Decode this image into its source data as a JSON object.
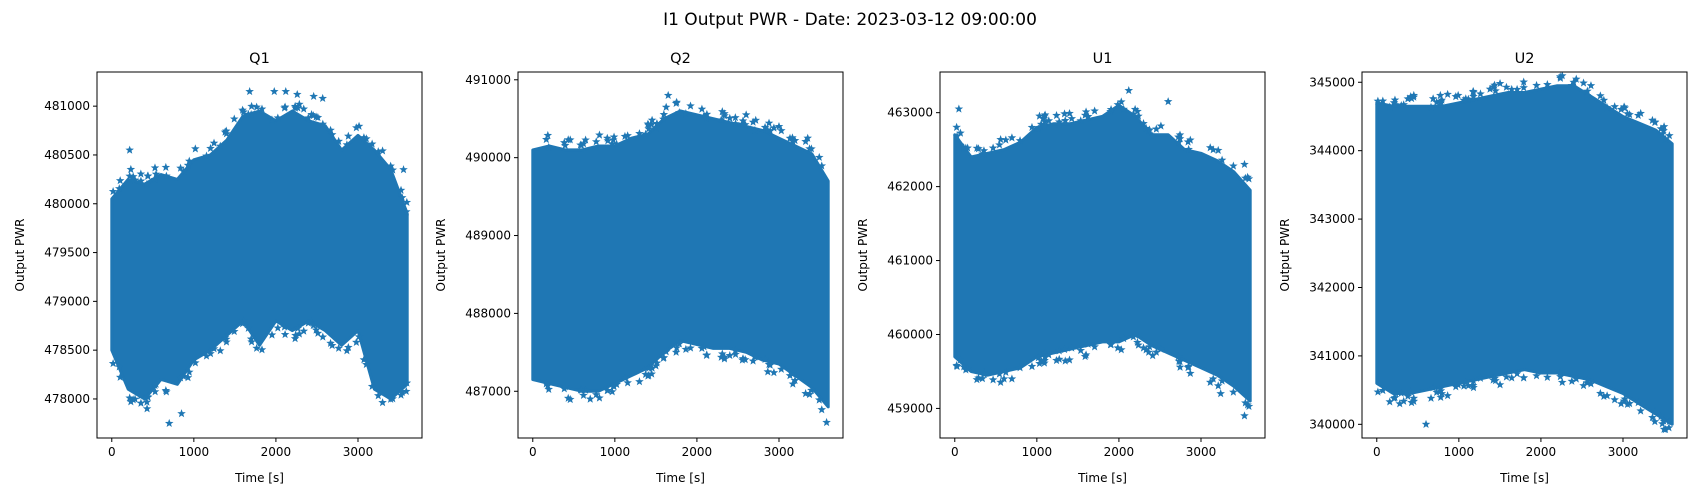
{
  "figure": {
    "suptitle": "I1 Output PWR - Date: 2023-03-12 09:00:00"
  },
  "chart_data": [
    {
      "type": "scatter",
      "title": "Q1",
      "xlabel": "Time [s]",
      "ylabel": "Output PWR",
      "marker": "star",
      "color": "#1f77b4",
      "xlim": [
        -180,
        3780
      ],
      "ylim": [
        477600,
        481350
      ],
      "xticks": [
        0,
        1000,
        2000,
        3000
      ],
      "yticks": [
        478000,
        478500,
        479000,
        479500,
        480000,
        480500,
        481000
      ],
      "xtick_labels": [
        "0",
        "1000",
        "2000",
        "3000"
      ],
      "ytick_labels": [
        "478000",
        "478500",
        "479000",
        "479500",
        "480000",
        "480500",
        "481000"
      ],
      "x": [
        0,
        200,
        400,
        600,
        800,
        1000,
        1200,
        1400,
        1600,
        1800,
        2000,
        2200,
        2400,
        2600,
        2800,
        3000,
        3200,
        3400,
        3600
      ],
      "y_upper": [
        480050,
        480250,
        480200,
        480300,
        480250,
        480450,
        480500,
        480650,
        480900,
        480950,
        480850,
        480950,
        480850,
        480800,
        480550,
        480700,
        480550,
        480350,
        479900
      ],
      "y_lower": [
        478500,
        478100,
        478000,
        478200,
        478150,
        478400,
        478500,
        478650,
        478800,
        478550,
        478800,
        478700,
        478800,
        478700,
        478550,
        478700,
        478100,
        478000,
        478150
      ],
      "outliers": [
        [
          218,
          480550
        ],
        [
          1680,
          481150
        ],
        [
          1980,
          481150
        ],
        [
          2120,
          481150
        ],
        [
          2260,
          481120
        ],
        [
          2460,
          481100
        ],
        [
          2570,
          481080
        ],
        [
          700,
          477750
        ],
        [
          430,
          477900
        ],
        [
          3555,
          480350
        ],
        [
          850,
          477850
        ]
      ]
    },
    {
      "type": "scatter",
      "title": "Q2",
      "xlabel": "Time [s]",
      "ylabel": "Output PWR",
      "marker": "star",
      "color": "#1f77b4",
      "xlim": [
        -180,
        3780
      ],
      "ylim": [
        486400,
        491100
      ],
      "xticks": [
        0,
        1000,
        2000,
        3000
      ],
      "yticks": [
        487000,
        488000,
        489000,
        490000,
        491000
      ],
      "xtick_labels": [
        "0",
        "1000",
        "2000",
        "3000"
      ],
      "ytick_labels": [
        "487000",
        "488000",
        "489000",
        "490000",
        "491000"
      ],
      "x": [
        0,
        200,
        400,
        600,
        800,
        1000,
        1200,
        1400,
        1600,
        1800,
        2000,
        2200,
        2400,
        2600,
        2800,
        3000,
        3200,
        3400,
        3600
      ],
      "y_upper": [
        490100,
        490150,
        490100,
        490100,
        490150,
        490150,
        490250,
        490300,
        490500,
        490600,
        490550,
        490500,
        490450,
        490400,
        490350,
        490250,
        490150,
        490050,
        489700
      ],
      "y_lower": [
        487150,
        487100,
        487050,
        487000,
        487000,
        487100,
        487200,
        487300,
        487500,
        487650,
        487600,
        487550,
        487550,
        487500,
        487400,
        487350,
        487200,
        487050,
        486800
      ],
      "outliers": [
        [
          1650,
          490800
        ],
        [
          2600,
          490550
        ],
        [
          3000,
          490400
        ],
        [
          3350,
          490250
        ],
        [
          3580,
          486600
        ],
        [
          700,
          486900
        ]
      ]
    },
    {
      "type": "scatter",
      "title": "U1",
      "xlabel": "Time [s]",
      "ylabel": "Output PWR",
      "marker": "star",
      "color": "#1f77b4",
      "xlim": [
        -180,
        3780
      ],
      "ylim": [
        458600,
        463550
      ],
      "xticks": [
        0,
        1000,
        2000,
        3000
      ],
      "yticks": [
        459000,
        460000,
        461000,
        462000,
        463000
      ],
      "xtick_labels": [
        "0",
        "1000",
        "2000",
        "3000"
      ],
      "ytick_labels": [
        "459000",
        "460000",
        "461000",
        "462000",
        "463000"
      ],
      "x": [
        0,
        200,
        400,
        600,
        800,
        1000,
        1200,
        1400,
        1600,
        1800,
        2000,
        2200,
        2400,
        2600,
        2800,
        3000,
        3200,
        3400,
        3600
      ],
      "y_upper": [
        462700,
        462400,
        462450,
        462500,
        462600,
        462800,
        462850,
        462850,
        462900,
        462950,
        463100,
        462950,
        462700,
        462700,
        462500,
        462450,
        462350,
        462200,
        461950
      ],
      "y_lower": [
        459700,
        459500,
        459450,
        459500,
        459550,
        459700,
        459750,
        459800,
        459850,
        459900,
        459900,
        460000,
        459850,
        459750,
        459650,
        459550,
        459450,
        459300,
        459100
      ],
      "outliers": [
        [
          50,
          463050
        ],
        [
          2120,
          463300
        ],
        [
          2600,
          463150
        ],
        [
          3530,
          462300
        ],
        [
          3530,
          458900
        ],
        [
          3240,
          459200
        ],
        [
          600,
          459400
        ]
      ]
    },
    {
      "type": "scatter",
      "title": "U2",
      "xlabel": "Time [s]",
      "ylabel": "Output PWR",
      "marker": "star",
      "color": "#1f77b4",
      "xlim": [
        -180,
        3780
      ],
      "ylim": [
        339800,
        345150
      ],
      "xticks": [
        0,
        1000,
        2000,
        3000
      ],
      "yticks": [
        340000,
        341000,
        342000,
        343000,
        344000,
        345000
      ],
      "xtick_labels": [
        "0",
        "1000",
        "2000",
        "3000"
      ],
      "ytick_labels": [
        "340000",
        "341000",
        "342000",
        "343000",
        "344000",
        "345000"
      ],
      "x": [
        0,
        200,
        400,
        600,
        800,
        1000,
        1200,
        1400,
        1600,
        1800,
        2000,
        2200,
        2400,
        2600,
        2800,
        3000,
        3200,
        3400,
        3600
      ],
      "y_upper": [
        344700,
        344650,
        344650,
        344650,
        344650,
        344700,
        344750,
        344800,
        344850,
        344850,
        344900,
        344950,
        344950,
        344800,
        344650,
        344500,
        344400,
        344300,
        344100
      ],
      "y_lower": [
        340600,
        340450,
        340450,
        340500,
        340550,
        340600,
        340650,
        340700,
        340750,
        340800,
        340750,
        340750,
        340700,
        340650,
        340550,
        340450,
        340300,
        340150,
        340000
      ],
      "outliers": [
        [
          600,
          340000
        ],
        [
          2400,
          345000
        ],
        [
          1380,
          344900
        ],
        [
          3560,
          339950
        ],
        [
          280,
          340300
        ]
      ]
    }
  ]
}
